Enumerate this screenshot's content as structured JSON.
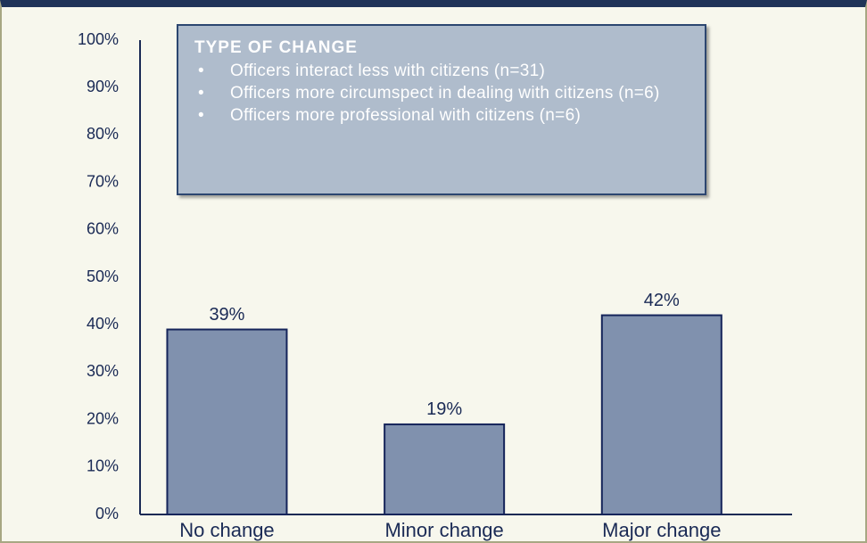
{
  "chart_data": {
    "type": "bar",
    "categories": [
      "No change",
      "Minor change",
      "Major change"
    ],
    "values": [
      39,
      19,
      42
    ],
    "value_labels": [
      "39%",
      "19%",
      "42%"
    ],
    "color": "#8091ae",
    "ylim": [
      0,
      100
    ],
    "yticks": [
      {
        "value": 0,
        "label": "0%"
      },
      {
        "value": 10,
        "label": "10%"
      },
      {
        "value": 20,
        "label": "20%"
      },
      {
        "value": 30,
        "label": "30%"
      },
      {
        "value": 40,
        "label": "40%"
      },
      {
        "value": 50,
        "label": "50%"
      },
      {
        "value": 60,
        "label": "60%"
      },
      {
        "value": 70,
        "label": "70%"
      },
      {
        "value": 80,
        "label": "80%"
      },
      {
        "value": 90,
        "label": "90%"
      },
      {
        "value": 100,
        "label": "100%"
      }
    ],
    "grid": false,
    "annotation": {
      "title": "TYPE OF CHANGE",
      "items": [
        "Officers interact less with citizens (n=31)",
        "Officers more circumspect in dealing with citizens (n=6)",
        "Officers more professional with citizens (n=6)"
      ]
    }
  }
}
